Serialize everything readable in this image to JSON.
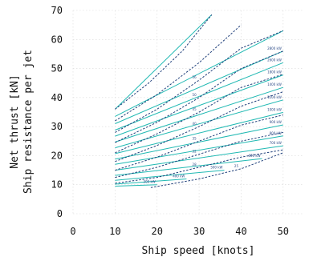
{
  "chart_data": {
    "type": "line",
    "title": "",
    "xlabel": "Ship speed [knots]",
    "ylabel_line1": "Net thrust [kN]",
    "ylabel_line2": "Ship resistance per jet",
    "xlim": [
      0,
      55
    ],
    "ylim": [
      0,
      70
    ],
    "xticks": [
      0,
      10,
      20,
      30,
      40,
      50
    ],
    "yticks": [
      0,
      10,
      20,
      30,
      40,
      50,
      60,
      70
    ],
    "grid": true,
    "colors": {
      "power": "#20b9b3",
      "rpm": "#1f3f7a"
    },
    "power_lines": [
      {
        "label": "",
        "points": [
          [
            10,
            36
          ],
          [
            33,
            68.5
          ]
        ]
      },
      {
        "label": "",
        "points": [
          [
            10,
            33.5
          ],
          [
            50,
            63
          ]
        ]
      },
      {
        "label": "2800 kW",
        "points": [
          [
            10,
            31
          ],
          [
            50,
            56
          ]
        ]
      },
      {
        "label": "2600 kW",
        "points": [
          [
            10,
            28.8
          ],
          [
            50,
            52
          ]
        ]
      },
      {
        "label": "1800 kW",
        "points": [
          [
            10,
            26.7
          ],
          [
            50,
            47.8
          ]
        ]
      },
      {
        "label": "1400 kW",
        "points": [
          [
            10,
            24.7
          ],
          [
            50,
            43.5
          ]
        ]
      },
      {
        "label": "1200 kW",
        "points": [
          [
            10,
            22.7
          ],
          [
            50,
            39.2
          ]
        ]
      },
      {
        "label": "1000 kW",
        "points": [
          [
            10,
            20.7
          ],
          [
            50,
            34.9
          ]
        ]
      },
      {
        "label": "900 kW",
        "points": [
          [
            10,
            18.8
          ],
          [
            50,
            30.6
          ]
        ]
      },
      {
        "label": "800 kW",
        "points": [
          [
            10,
            17
          ],
          [
            50,
            26.8
          ]
        ]
      },
      {
        "label": "700 kW",
        "points": [
          [
            10,
            15
          ],
          [
            50,
            23.4
          ]
        ]
      },
      {
        "label": "600 kW",
        "points": [
          [
            10,
            13.2
          ],
          [
            45,
            19
          ]
        ]
      },
      {
        "label": "500 kW",
        "points": [
          [
            10,
            11.5
          ],
          [
            36,
            15
          ]
        ]
      },
      {
        "label": "400 kW",
        "points": [
          [
            10,
            10.2
          ],
          [
            27,
            12
          ]
        ]
      },
      {
        "label": "300 kW",
        "points": [
          [
            10,
            9.5
          ],
          [
            20,
            10
          ]
        ]
      }
    ],
    "rpm_lines": [
      {
        "label": "",
        "points": [
          [
            10,
            36
          ],
          [
            18,
            45
          ],
          [
            26,
            56
          ],
          [
            33,
            68.5
          ]
        ]
      },
      {
        "label": "",
        "points": [
          [
            10,
            32
          ],
          [
            20,
            41
          ],
          [
            30,
            52
          ],
          [
            40,
            65
          ]
        ]
      },
      {
        "label": "56",
        "points": [
          [
            10,
            28
          ],
          [
            20,
            36
          ],
          [
            30,
            46
          ],
          [
            40,
            57
          ],
          [
            50,
            63
          ]
        ]
      },
      {
        "label": "50",
        "points": [
          [
            10,
            24.5
          ],
          [
            20,
            31.5
          ],
          [
            30,
            40
          ],
          [
            40,
            50
          ],
          [
            50,
            56
          ]
        ]
      },
      {
        "label": "45",
        "points": [
          [
            10,
            21
          ],
          [
            20,
            27.5
          ],
          [
            30,
            35
          ],
          [
            40,
            43.5
          ],
          [
            50,
            48
          ]
        ]
      },
      {
        "label": "40",
        "points": [
          [
            10,
            18
          ],
          [
            20,
            23.5
          ],
          [
            30,
            30
          ],
          [
            40,
            37
          ],
          [
            50,
            42
          ]
        ]
      },
      {
        "label": "35",
        "points": [
          [
            10,
            15
          ],
          [
            20,
            19.5
          ],
          [
            30,
            25
          ],
          [
            40,
            30.5
          ],
          [
            50,
            34
          ]
        ]
      },
      {
        "label": "32",
        "points": [
          [
            10,
            12.5
          ],
          [
            20,
            16
          ],
          [
            30,
            20.5
          ],
          [
            40,
            25
          ],
          [
            50,
            28
          ]
        ]
      },
      {
        "label": "28",
        "points": [
          [
            10,
            10.5
          ],
          [
            20,
            12.5
          ],
          [
            30,
            16
          ],
          [
            40,
            19.5
          ],
          [
            50,
            22
          ]
        ]
      },
      {
        "label": "25",
        "points": [
          [
            18.5,
            9
          ],
          [
            30,
            12
          ],
          [
            40,
            15.5
          ],
          [
            50,
            21
          ]
        ]
      }
    ]
  }
}
